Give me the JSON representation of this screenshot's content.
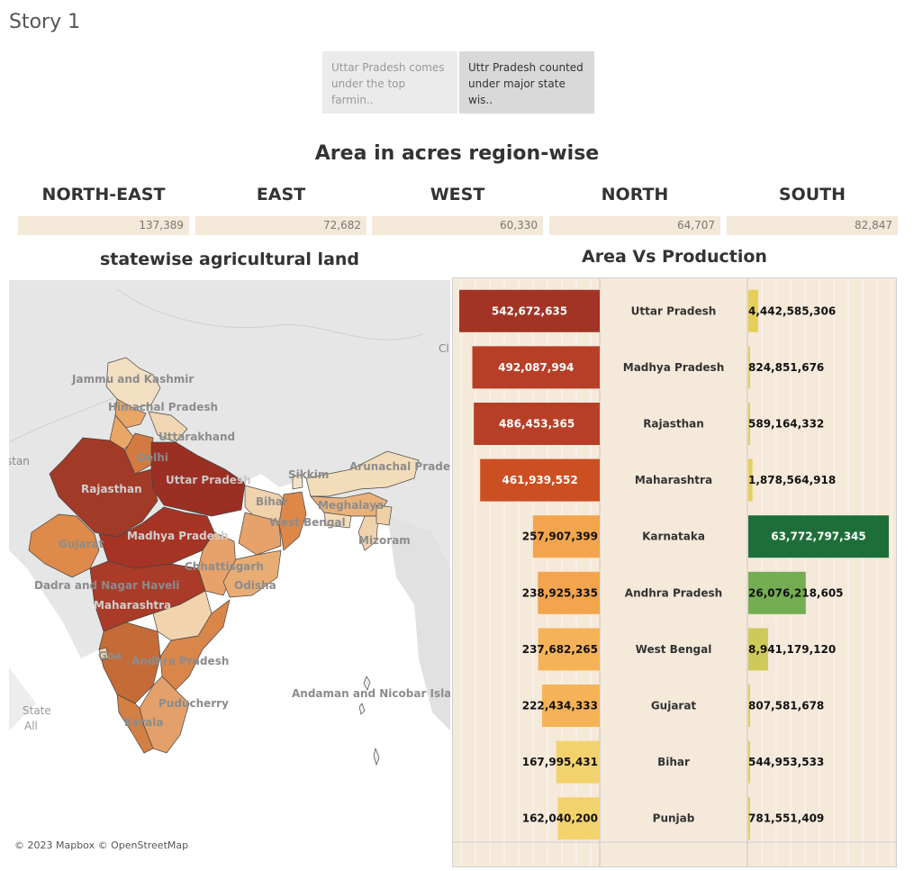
{
  "story": {
    "title": "Story 1",
    "tabs": [
      {
        "line1": "Uttar Pradesh comes",
        "line2": "under the top farmin.."
      },
      {
        "line1": "Uttr Pradesh counted",
        "line2": "under major state wis.."
      }
    ]
  },
  "kpi": {
    "title": "Area in acres region-wise",
    "regions": [
      {
        "name": "NORTH-EAST",
        "value": "137,389"
      },
      {
        "name": "EAST",
        "value": "72,682"
      },
      {
        "name": "WEST",
        "value": "60,330"
      },
      {
        "name": "NORTH",
        "value": "64,707"
      },
      {
        "name": "SOUTH",
        "value": "82,847"
      }
    ]
  },
  "map": {
    "title": "statewise agricultural land",
    "legend_title": "State",
    "legend_value": "All",
    "attribution": "© 2023 Mapbox © OpenStreetMap",
    "region_labels": [
      "Pakistan",
      "China"
    ],
    "state_labels": [
      "Jammu and Kashmir",
      "Himachal Pradesh",
      "Uttarakhand",
      "Delhi",
      "Uttar Pradesh",
      "Rajasthan",
      "Sikkim",
      "Arunachal Pradesh",
      "Bihar",
      "Meghalaya",
      "West Bengal",
      "Mizoram",
      "Gujarat",
      "Madhya Pradesh",
      "Chhattisgarh",
      "Odisha",
      "Dadra and Nagar Haveli",
      "Maharashtra",
      "Goa",
      "Andhra Pradesh",
      "Andaman and Nicobar Islands",
      "Puducherry",
      "Kerala"
    ],
    "state_label_visible": [
      "stan",
      "Cl"
    ]
  },
  "chart_data": {
    "type": "bar",
    "title": "Area Vs Production",
    "categories": [
      "Uttar Pradesh",
      "Madhya Pradesh",
      "Rajasthan",
      "Maharashtra",
      "Karnataka",
      "Andhra Pradesh",
      "West Bengal",
      "Gujarat",
      "Bihar",
      "Punjab"
    ],
    "series": [
      {
        "values": [
          542672635,
          492087994,
          486453365,
          461939552,
          257907399,
          238925335,
          237682265,
          222434333,
          167995431,
          162040200
        ],
        "labels": [
          "542,672,635",
          "492,087,994",
          "486,453,365",
          "461,939,552",
          "257,907,399",
          "238,925,335",
          "237,682,265",
          "222,434,333",
          "167,995,431",
          "162,040,200"
        ],
        "colors": [
          "#a23425",
          "#b83f27",
          "#b83f27",
          "#cc4f22",
          "#f3a54d",
          "#f3a54d",
          "#f5b257",
          "#f5b257",
          "#f3d26e",
          "#f3d26e"
        ]
      },
      {
        "values": [
          4442585306,
          824851676,
          589164332,
          1878564918,
          63772797345,
          26076218605,
          8941179120,
          807581678,
          544953533,
          781551409
        ],
        "labels": [
          "4,442,585,306",
          "824,851,676",
          "589,164,332",
          "1,878,564,918",
          "63,772,797,345",
          "26,076,218,605",
          "8,941,179,120",
          "807,581,678",
          "544,953,533",
          "781,551,409"
        ],
        "colors": [
          "#e5cf57",
          "#e5cf57",
          "#e5cf57",
          "#e5cf57",
          "#1e6e3a",
          "#74ad52",
          "#cfc95a",
          "#e5cf57",
          "#e5cf57",
          "#e5cf57"
        ]
      }
    ]
  }
}
